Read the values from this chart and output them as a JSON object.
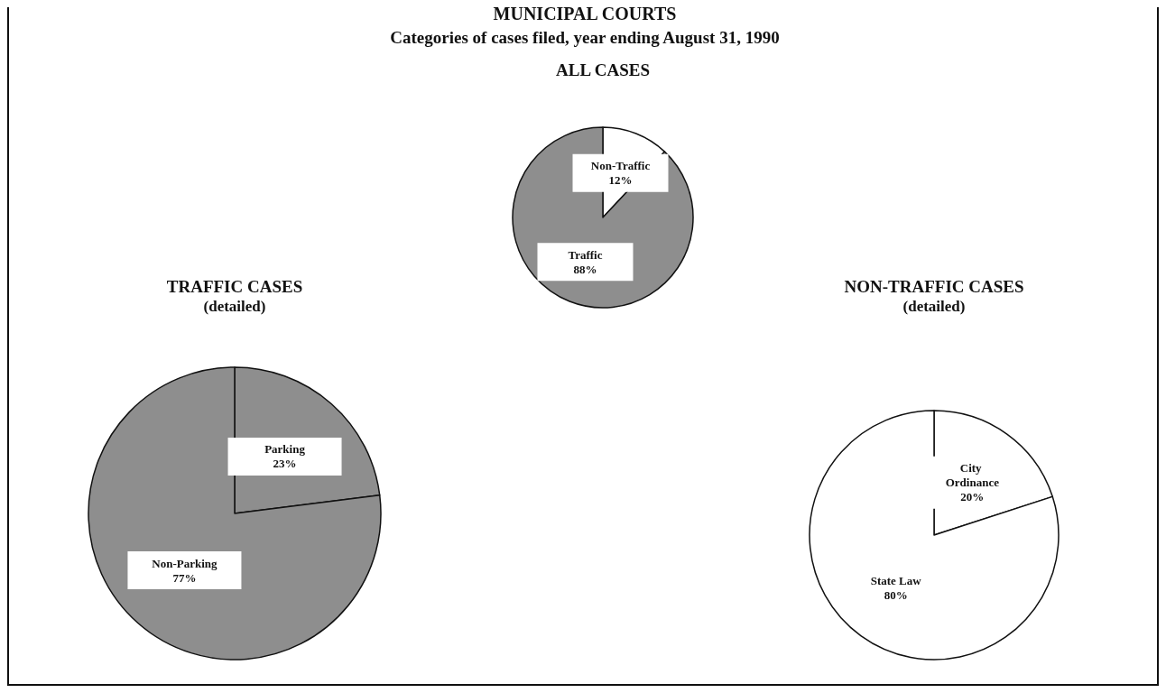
{
  "chart_data": [
    {
      "type": "other",
      "title": "MUNICIPAL COURTS",
      "subtitle": "Categories of cases filed, year ending August 31, 1990"
    },
    {
      "type": "pie",
      "title": "ALL CASES",
      "categories": [
        "Non-Traffic",
        "Traffic"
      ],
      "values": [
        12,
        88
      ],
      "value_labels": [
        "12%",
        "88%"
      ],
      "colors": [
        "#ffffff",
        "#8e8e8e"
      ]
    },
    {
      "type": "pie",
      "title": "TRAFFIC CASES",
      "subtitle": "(detailed)",
      "categories": [
        "Parking",
        "Non-Parking"
      ],
      "values": [
        23,
        77
      ],
      "value_labels": [
        "23%",
        "77%"
      ],
      "colors": [
        "#8e8e8e",
        "#8e8e8e"
      ]
    },
    {
      "type": "pie",
      "title": "NON-TRAFFIC CASES",
      "subtitle": "(detailed)",
      "categories": [
        "City Ordinance",
        "State Law"
      ],
      "values": [
        20,
        80
      ],
      "value_labels": [
        "20%",
        "80%"
      ],
      "colors": [
        "#ffffff",
        "#ffffff"
      ]
    }
  ]
}
